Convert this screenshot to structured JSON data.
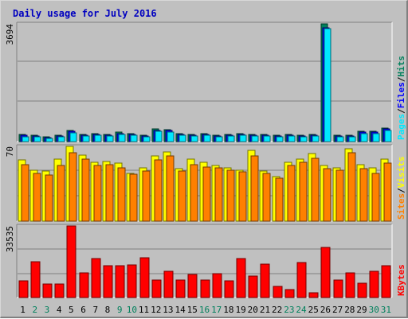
{
  "chart_data": {
    "type": "bar",
    "title": "Daily usage for July 2016",
    "categories": [
      "1",
      "2",
      "3",
      "4",
      "5",
      "6",
      "7",
      "8",
      "9",
      "10",
      "11",
      "12",
      "13",
      "14",
      "15",
      "16",
      "17",
      "18",
      "19",
      "20",
      "21",
      "22",
      "23",
      "24",
      "25",
      "26",
      "27",
      "28",
      "29",
      "30",
      "31"
    ],
    "weekend_days": [
      "2",
      "3",
      "9",
      "10",
      "16",
      "17",
      "23",
      "24",
      "30",
      "31"
    ],
    "panels": [
      {
        "id": "hits",
        "ymax_label": "3694",
        "ymax": 3694,
        "legend": [
          "Pages",
          "/",
          "Files",
          "/",
          "Hits"
        ],
        "legend_colors": [
          "#00e8ff",
          "#000000",
          "#0000ff",
          "#000000",
          "#00805c"
        ],
        "series": [
          {
            "name": "Hits",
            "color": "#00805c",
            "values": [
              220,
              190,
              140,
              190,
              360,
              230,
              250,
              230,
              300,
              250,
              200,
              400,
              380,
              250,
              230,
              260,
              210,
              220,
              250,
              220,
              230,
              200,
              220,
              190,
              220,
              3694,
              200,
              210,
              330,
              330,
              430
            ]
          },
          {
            "name": "Files",
            "color": "#0000ff",
            "values": [
              190,
              165,
              120,
              170,
              320,
              205,
              220,
              205,
              260,
              220,
              180,
              360,
              340,
              220,
              205,
              230,
              185,
              190,
              220,
              195,
              205,
              180,
              195,
              170,
              195,
              3560,
              175,
              185,
              290,
              290,
              390
            ]
          },
          {
            "name": "Pages",
            "color": "#00e8ff",
            "values": [
              160,
              140,
              100,
              150,
              280,
              180,
              190,
              180,
              220,
              190,
              160,
              320,
              300,
              190,
              180,
              200,
              160,
              170,
              190,
              170,
              180,
              160,
              170,
              150,
              170,
              3540,
              150,
              160,
              250,
              260,
              350
            ]
          }
        ]
      },
      {
        "id": "visits",
        "ymax_label": "70",
        "ymax": 70,
        "legend": [
          "Sites",
          "/",
          "Visits"
        ],
        "legend_colors": [
          "#ff8000",
          "#000000",
          "#ffff00"
        ],
        "series": [
          {
            "name": "Visits",
            "color": "#ffff00",
            "values": [
              57,
              48,
              47,
              58,
              70,
              62,
              55,
              56,
              54,
              45,
              50,
              61,
              65,
              49,
              58,
              55,
              52,
              50,
              48,
              66,
              47,
              42,
              55,
              58,
              63,
              52,
              50,
              68,
              53,
              50,
              58
            ]
          },
          {
            "name": "Sites",
            "color": "#ff8000",
            "values": [
              53,
              45,
              43,
              52,
              64,
              58,
              52,
              53,
              50,
              44,
              47,
              57,
              61,
              47,
              53,
              51,
              50,
              48,
              46,
              61,
              45,
              40,
              52,
              55,
              59,
              49,
              48,
              64,
              49,
              45,
              54
            ]
          }
        ]
      },
      {
        "id": "kbytes",
        "ymax_label": "33535",
        "ymax": 33535,
        "legend": [
          "KBytes"
        ],
        "legend_colors": [
          "#ff0000"
        ],
        "series": [
          {
            "name": "KBytes",
            "color": "#ff0000",
            "values": [
              7800,
              16700,
              6200,
              6300,
              33535,
              11600,
              18400,
              14800,
              14800,
              15300,
              18600,
              8300,
              12400,
              8100,
              10800,
              8100,
              11200,
              7800,
              18300,
              10100,
              15500,
              5300,
              3900,
              16400,
              2400,
              23500,
              8200,
              11600,
              6600,
              12400,
              15000
            ]
          }
        ]
      }
    ]
  }
}
